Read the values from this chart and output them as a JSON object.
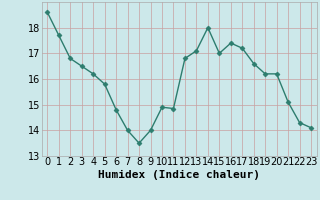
{
  "x": [
    0,
    1,
    2,
    3,
    4,
    5,
    6,
    7,
    8,
    9,
    10,
    11,
    12,
    13,
    14,
    15,
    16,
    17,
    18,
    19,
    20,
    21,
    22,
    23
  ],
  "y": [
    18.6,
    17.7,
    16.8,
    16.5,
    16.2,
    15.8,
    14.8,
    14.0,
    13.5,
    14.0,
    14.9,
    14.85,
    16.8,
    17.1,
    18.0,
    17.0,
    17.4,
    17.2,
    16.6,
    16.2,
    16.2,
    15.1,
    14.3,
    14.1
  ],
  "line_color": "#2d7d6e",
  "marker": "D",
  "marker_size": 2.5,
  "bg_color": "#cce8ea",
  "grid_color": "#b0d0d2",
  "xlabel": "Humidex (Indice chaleur)",
  "xlabel_fontsize": 8,
  "tick_fontsize": 7,
  "ylim": [
    13,
    19
  ],
  "xlim": [
    -0.5,
    23.5
  ],
  "yticks": [
    13,
    14,
    15,
    16,
    17,
    18
  ],
  "xticks": [
    0,
    1,
    2,
    3,
    4,
    5,
    6,
    7,
    8,
    9,
    10,
    11,
    12,
    13,
    14,
    15,
    16,
    17,
    18,
    19,
    20,
    21,
    22,
    23
  ]
}
